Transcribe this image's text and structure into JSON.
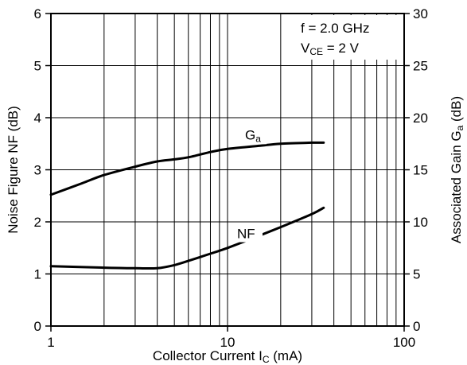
{
  "chart_data": {
    "type": "line",
    "x_scale": "log",
    "xlim": [
      1,
      100
    ],
    "ylim_left": [
      0,
      6
    ],
    "ylim_right": [
      0,
      30
    ],
    "grid": true,
    "xlabel": {
      "main": "Collector Current I",
      "sub": "C",
      "tail": " (mA)"
    },
    "ylabel_left": "Noise Figure NF (dB)",
    "ylabel_right": {
      "main": "Associated Gain G",
      "sub": "a",
      "tail": " (dB)"
    },
    "x_tick_labels": [
      {
        "value": 1,
        "label": "1"
      },
      {
        "value": 10,
        "label": "10"
      },
      {
        "value": 100,
        "label": "100"
      }
    ],
    "y_left_ticks": [
      "0",
      "1",
      "2",
      "3",
      "4",
      "5",
      "6"
    ],
    "y_right_ticks": [
      "0",
      "5",
      "10",
      "15",
      "20",
      "25",
      "30"
    ],
    "conditions": [
      {
        "main": "f = 2.0 GHz",
        "sub": "",
        "tail": ""
      },
      {
        "main": "V",
        "sub": "CE",
        "tail": " = 2 V"
      }
    ],
    "series": [
      {
        "name": "NF",
        "label": {
          "main": "NF",
          "sub": ""
        },
        "axis": "left",
        "x": [
          1,
          2,
          3,
          4,
          5,
          6,
          8,
          10,
          15,
          20,
          30,
          35
        ],
        "y": [
          1.15,
          1.12,
          1.11,
          1.11,
          1.17,
          1.25,
          1.39,
          1.5,
          1.73,
          1.9,
          2.15,
          2.27
        ]
      },
      {
        "name": "Ga",
        "label": {
          "main": "G",
          "sub": "a"
        },
        "axis": "right",
        "x": [
          1,
          1.5,
          2,
          3,
          4,
          5,
          6,
          8,
          10,
          15,
          20,
          30,
          35
        ],
        "y": [
          12.6,
          13.7,
          14.5,
          15.3,
          15.8,
          16.0,
          16.2,
          16.7,
          17.0,
          17.3,
          17.5,
          17.6,
          17.6
        ]
      }
    ]
  }
}
